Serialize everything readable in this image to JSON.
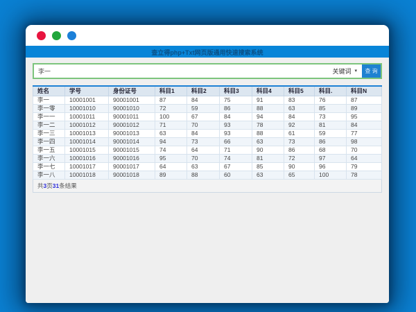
{
  "window": {
    "app_title": "查立得php+Txt网页版通用快速搜索系统",
    "traffic_lights": [
      {
        "name": "close",
        "color": "#e8143f"
      },
      {
        "name": "minimize",
        "color": "#21a63c"
      },
      {
        "name": "maximize",
        "color": "#1c80d8"
      }
    ]
  },
  "search": {
    "input_value": "李一",
    "keyword_select": "关键词",
    "select_caret": "▾",
    "button_label": "查 询"
  },
  "table": {
    "headers": [
      "姓名",
      "学号",
      "身份证号",
      "科目1",
      "科目2",
      "科目3",
      "科目4",
      "科目5",
      "科目.",
      "科目N"
    ],
    "rows": [
      [
        "李一",
        "10001001",
        "90001001",
        "87",
        "84",
        "75",
        "91",
        "83",
        "76",
        "87"
      ],
      [
        "李一零",
        "10001010",
        "90001010",
        "72",
        "59",
        "86",
        "88",
        "63",
        "85",
        "89"
      ],
      [
        "李一一",
        "10001011",
        "90001011",
        "100",
        "67",
        "84",
        "94",
        "84",
        "73",
        "95"
      ],
      [
        "李一二",
        "10001012",
        "90001012",
        "71",
        "70",
        "93",
        "78",
        "92",
        "81",
        "84"
      ],
      [
        "李一三",
        "10001013",
        "90001013",
        "63",
        "84",
        "93",
        "88",
        "61",
        "59",
        "77"
      ],
      [
        "李一四",
        "10001014",
        "90001014",
        "94",
        "73",
        "66",
        "63",
        "73",
        "86",
        "98"
      ],
      [
        "李一五",
        "10001015",
        "90001015",
        "74",
        "64",
        "71",
        "90",
        "86",
        "68",
        "70"
      ],
      [
        "李一六",
        "10001016",
        "90001016",
        "95",
        "70",
        "74",
        "81",
        "72",
        "97",
        "64"
      ],
      [
        "李一七",
        "10001017",
        "90001017",
        "64",
        "63",
        "67",
        "85",
        "90",
        "96",
        "79"
      ],
      [
        "李一八",
        "10001018",
        "90001018",
        "89",
        "88",
        "60",
        "63",
        "65",
        "100",
        "78"
      ]
    ]
  },
  "summary": {
    "prefix": "共",
    "page_count": "3",
    "pages_word": "页",
    "result_count": "31",
    "suffix": "条结果"
  },
  "colors": {
    "desktop_blue": "#0a81d3",
    "titlebar_blue": "#0885d8",
    "title_text_blue": "#0a5086",
    "form_border_green": "#7cc47c",
    "button_blue": "#1e81d1",
    "header_row_bg": "#dce6f0",
    "table_top_border_blue": "#1d81d5",
    "summary_number_blue": "#2b2bd8"
  }
}
